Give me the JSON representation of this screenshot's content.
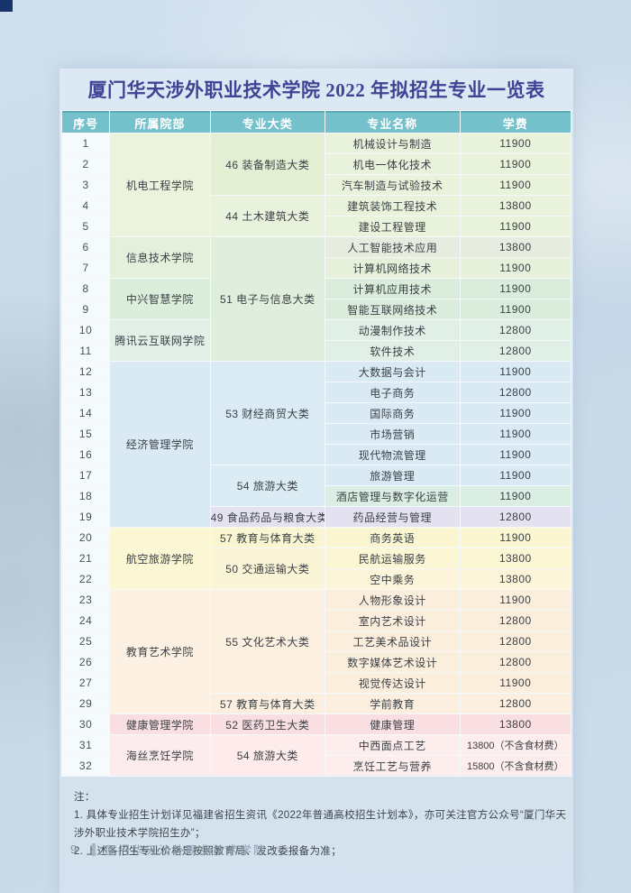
{
  "page": {
    "title": "厦门华天涉外职业技术学院 2022 年拟招生专业一览表",
    "title_color": "#3d4495",
    "notes": {
      "label": "注：",
      "items": [
        "1. 具体专业招生计划详见福建省招生资讯《2022年普通高校招生计划本》，亦可关注官方公众号“厦门华天涉外职业技术学院招生办”；",
        "2. 上述各招生专业价格是按照教育局、发改委报备为准；"
      ]
    },
    "footer": {
      "page_number": "9",
      "school": "厦门华天涉外职业技术学院"
    }
  },
  "table": {
    "headers": [
      "序号",
      "所属院部",
      "专业大类",
      "专业名称",
      "学费"
    ],
    "header_bg": "#74c1cb",
    "index_cell_bg": "#f5fafc",
    "rows": [
      {
        "no": "1",
        "college": {
          "text": "机电工程学院",
          "span": 5,
          "bg": "#ebf3dd"
        },
        "category": {
          "text": "46 装备制造大类",
          "span": 3,
          "bg": "#e4efd4"
        },
        "major": "机械设计与制造",
        "fee": "11900",
        "bg": "#e9f2da"
      },
      {
        "no": "2",
        "major": "机电一体化技术",
        "fee": "11900",
        "bg": "#e9f2da"
      },
      {
        "no": "3",
        "major": "汽车制造与试验技术",
        "fee": "11900",
        "bg": "#e9f2da"
      },
      {
        "no": "4",
        "category": {
          "text": "44 土木建筑大类",
          "span": 2,
          "bg": "#e9f2dc"
        },
        "major": "建筑装饰工程技术",
        "fee": "13800",
        "bg": "#e9f2da"
      },
      {
        "no": "5",
        "major": "建设工程管理",
        "fee": "11900",
        "bg": "#e9f2da"
      },
      {
        "no": "6",
        "college": {
          "text": "信息技术学院",
          "span": 2,
          "bg": "#e4f0dc"
        },
        "category": {
          "text": "51 电子与信息大类",
          "span": 6,
          "bg": "#e0eedd"
        },
        "major": "人工智能技术应用",
        "fee": "13800",
        "bg": "#e7ebe0"
      },
      {
        "no": "7",
        "major": "计算机网络技术",
        "fee": "11900",
        "bg": "#e6f0db"
      },
      {
        "no": "8",
        "college": {
          "text": "中兴智慧学院",
          "span": 2,
          "bg": "#dbeedc"
        },
        "major": "计算机应用技术",
        "fee": "11900",
        "bg": "#daecdb"
      },
      {
        "no": "9",
        "major": "智能互联网络技术",
        "fee": "11900",
        "bg": "#daecdb"
      },
      {
        "no": "10",
        "college": {
          "text": "腾讯云互联网学院",
          "span": 2,
          "bg": "#e2f0e7"
        },
        "major": "动漫制作技术",
        "fee": "12800",
        "bg": "#e1f0e6"
      },
      {
        "no": "11",
        "major": "软件技术",
        "fee": "12800",
        "bg": "#e1f0e6"
      },
      {
        "no": "12",
        "college": {
          "text": "经济管理学院",
          "span": 8,
          "bg": "#d9eaf5"
        },
        "category": {
          "text": "53 财经商贸大类",
          "span": 5,
          "bg": "#daebf5"
        },
        "major": "大数据与会计",
        "fee": "11900",
        "bg": "#d9eaf5"
      },
      {
        "no": "13",
        "major": "电子商务",
        "fee": "12800",
        "bg": "#d9eaf5"
      },
      {
        "no": "14",
        "major": "国际商务",
        "fee": "11900",
        "bg": "#d9eaf5"
      },
      {
        "no": "15",
        "major": "市场营销",
        "fee": "11900",
        "bg": "#d9eaf5"
      },
      {
        "no": "16",
        "major": "现代物流管理",
        "fee": "11900",
        "bg": "#d9eaf5"
      },
      {
        "no": "17",
        "category": {
          "text": "54 旅游大类",
          "span": 2,
          "bg": "#dcecf4"
        },
        "major": "旅游管理",
        "fee": "11900",
        "bg": "#d9eaf5"
      },
      {
        "no": "18",
        "major": "酒店管理与数字化运营",
        "fee": "11900",
        "bg": "#daeee3"
      },
      {
        "no": "19",
        "category": {
          "text": "49 食品药品与粮食大类",
          "span": 1,
          "bg": "#e4e2f1"
        },
        "major": "药品经营与管理",
        "fee": "12800",
        "bg": "#e4e2f1"
      },
      {
        "no": "20",
        "college": {
          "text": "航空旅游学院",
          "span": 3,
          "bg": "#fbf7d4"
        },
        "category": {
          "text": "57 教育与体育大类",
          "span": 1,
          "bg": "#faf6d2"
        },
        "major": "商务英语",
        "fee": "11900",
        "bg": "#faf6d2"
      },
      {
        "no": "21",
        "category": {
          "text": "50 交通运输大类",
          "span": 2,
          "bg": "#fbf5d7"
        },
        "major": "民航运输服务",
        "fee": "13800",
        "bg": "#fbf6d4"
      },
      {
        "no": "22",
        "major": "空中乘务",
        "fee": "13800",
        "bg": "#fcf5da"
      },
      {
        "no": "23",
        "college": {
          "text": "教育艺术学院",
          "span": 6,
          "bg": "#fcf1e3"
        },
        "category": {
          "text": "55 文化艺术大类",
          "span": 5,
          "bg": "#fcf0e1"
        },
        "major": "人物形象设计",
        "fee": "11900",
        "bg": "#fceedd"
      },
      {
        "no": "24",
        "major": "室内艺术设计",
        "fee": "12800",
        "bg": "#fceedd"
      },
      {
        "no": "25",
        "major": "工艺美术品设计",
        "fee": "12800",
        "bg": "#fceedd"
      },
      {
        "no": "26",
        "major": "数字媒体艺术设计",
        "fee": "12800",
        "bg": "#fceedd"
      },
      {
        "no": "27",
        "major": "视觉传达设计",
        "fee": "11900",
        "bg": "#fceedd"
      },
      {
        "no": "29",
        "category": {
          "text": "57 教育与体育大类",
          "span": 1,
          "bg": "#fcefdf"
        },
        "major": "学前教育",
        "fee": "12800",
        "bg": "#fcefdf"
      },
      {
        "no": "30",
        "college": {
          "text": "健康管理学院",
          "span": 1,
          "bg": "#f9dee2"
        },
        "category": {
          "text": "52 医药卫生大类",
          "span": 1,
          "bg": "#f9dee2"
        },
        "major": "健康管理",
        "fee": "13800",
        "bg": "#f9dee2"
      },
      {
        "no": "31",
        "college": {
          "text": "海丝烹饪学院",
          "span": 2,
          "bg": "#fdeced"
        },
        "category": {
          "text": "54 旅游大类",
          "span": 2,
          "bg": "#fdeceb"
        },
        "major": "中西面点工艺",
        "fee": "13800（不含食材费）",
        "bg": "#fdeded"
      },
      {
        "no": "32",
        "major": "烹饪工艺与营养",
        "fee": "15800（不含食材费）",
        "bg": "#fdeded"
      }
    ]
  }
}
